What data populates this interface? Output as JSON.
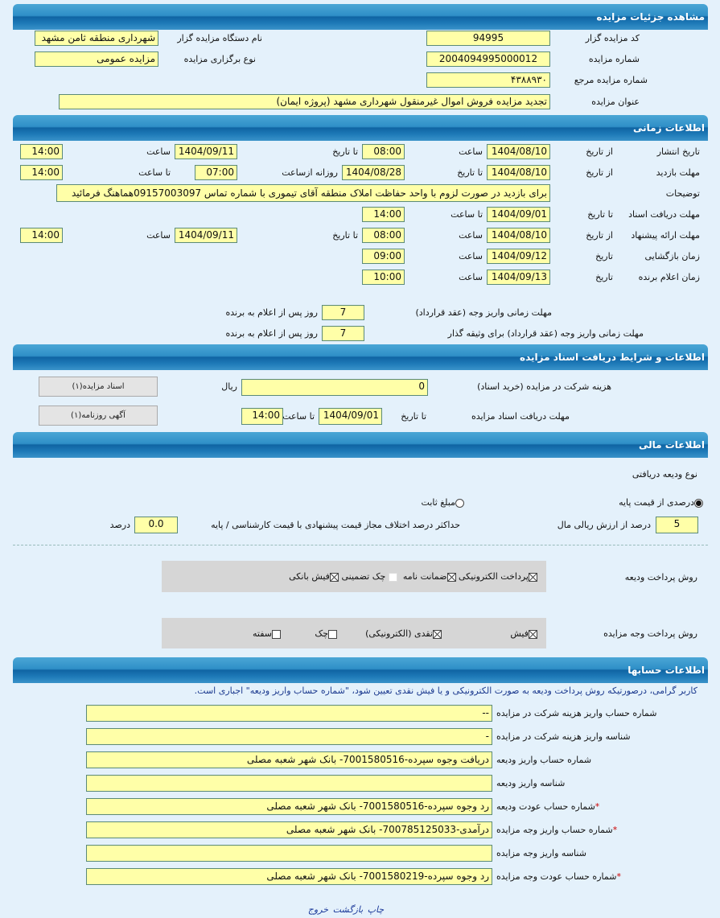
{
  "details": {
    "title": "مشاهده جزئیات مزایده",
    "code_label": "کد مزایده گزار",
    "code": "94995",
    "org_label": "نام دستگاه مزایده گزار",
    "org": "شهرداری منطقه ثامن مشهد",
    "number_label": "شماره مزایده",
    "number": "2004094995000012",
    "type_label": "نوع برگزاری مزایده",
    "type": "مزایده عمومی",
    "ref_label": "شماره مزایده مرجع",
    "ref": "۴۳۸۸۹۳۰",
    "subject_label": "عنوان مزایده",
    "subject": "تجدید مزایده فروش اموال غیرمنقول شهرداری مشهد (پروژه ایمان)"
  },
  "timing": {
    "title": "اطلاعات زمانی",
    "lbl_from_date": "از تاریخ",
    "lbl_to_date": "تا تاریخ",
    "lbl_time": "ساعت",
    "lbl_to_time": "تا ساعت",
    "lbl_date": "تاریخ",
    "lbl_daily_from": "روزانه ازساعت",
    "publish": {
      "label": "تاریخ انتشار",
      "from_date": "1404/08/10",
      "from_time": "08:00",
      "to_date": "1404/09/11",
      "to_time": "14:00"
    },
    "visit": {
      "label": "مهلت بازدید",
      "from_date": "1404/08/10",
      "to_date": "1404/08/28",
      "daily_from": "07:00",
      "to_time": "14:00"
    },
    "notes": {
      "label": "توضیحات",
      "value": "برای بازدید در صورت لزوم با واحد حفاظت املاک منطقه آقای تیموری با شماره تماس 09157003097هماهنگ فرمائید"
    },
    "docs_deadline": {
      "label": "مهلت دریافت اسناد",
      "to_date": "1404/09/01",
      "to_time": "14:00"
    },
    "offer": {
      "label": "مهلت ارائه پیشنهاد",
      "from_date": "1404/08/10",
      "from_time": "08:00",
      "to_date": "1404/09/11",
      "to_time": "14:00"
    },
    "opening": {
      "label": "زمان بازگشایی",
      "date": "1404/09/12",
      "time": "09:00"
    },
    "winner": {
      "label": "زمان اعلام برنده",
      "date": "1404/09/13",
      "time": "10:00"
    },
    "payment1": {
      "label": "مهلت زمانی واریز وجه (عقد قرارداد)",
      "days": "7",
      "suffix": "روز پس از اعلام به برنده"
    },
    "payment2": {
      "label": "مهلت زمانی واریز وجه (عقد قرارداد) برای وثیقه گذار",
      "days": "7",
      "suffix": "روز پس از اعلام به برنده"
    }
  },
  "docs": {
    "title": "اطلاعات و شرایط دریافت اسناد مزایده",
    "fee_label": "هزینه شرکت در مزایده (خرید اسناد)",
    "fee": "0",
    "currency": "ریال",
    "deadline_label": "مهلت دریافت اسناد مزایده",
    "to_date_label": "تا تاریخ",
    "to_date": "1404/09/01",
    "to_time_label": "تا ساعت",
    "to_time": "14:00",
    "btn_docs": "اسناد مزایده(۱)",
    "btn_ad": "آگهی روزنامه(۱)"
  },
  "finance": {
    "title": "اطلاعات مالی",
    "deposit_type_label": "نوع ودیعه دریافتی",
    "radio_percent": "درصدی از قیمت پایه",
    "radio_fixed": "مبلغ ثابت",
    "selected": "percent",
    "percent": "5",
    "percent_label": "درصد از ارزش ریالی مال",
    "max_diff_label": "حداکثر درصد اختلاف مجاز قیمت پیشنهادی با قیمت کارشناسی / پایه",
    "max_diff": "0.0",
    "max_diff_unit": "درصد",
    "deposit_method_label": "روش پرداخت ودیعه",
    "deposit_methods": [
      {
        "label": "پرداخت الکترونیکی",
        "checked": true
      },
      {
        "label": "ضمانت نامه",
        "checked": true
      },
      {
        "label": "چک تضمینی",
        "checked": false
      },
      {
        "label": "فیش بانکی",
        "checked": true
      }
    ],
    "payment_method_label": "روش پرداخت وجه مزایده",
    "payment_methods": [
      {
        "label": "فیش",
        "checked": true
      },
      {
        "label": "نقدی (الکترونیکی)",
        "checked": true
      },
      {
        "label": "چک",
        "checked": false
      },
      {
        "label": "سفته",
        "checked": false
      }
    ]
  },
  "accounts": {
    "title": "اطلاعات حسابها",
    "notice": "کاربر گرامی، درصورتیکه روش پرداخت ودیعه به صورت الکترونیکی و یا فیش نقدی تعیین شود، \"شماره حساب واریز ودیعه\" اجباری است.",
    "rows": [
      {
        "label": "شماره حساب واریز هزینه شرکت در مزایده",
        "value": "--",
        "required": false
      },
      {
        "label": "شناسه واریز هزینه شرکت در مزایده",
        "value": "-",
        "required": false
      },
      {
        "label": "شماره حساب واریز ودیعه",
        "value": "دریافت وجوه سپرده-7001580516- بانک شهر شعبه مصلی",
        "required": false
      },
      {
        "label": "شناسه واریز ودیعه",
        "value": "",
        "required": false
      },
      {
        "label": "شماره حساب عودت ودیعه",
        "value": "رد وجوه سپرده-7001580516- بانک شهر شعبه مصلی",
        "required": true
      },
      {
        "label": "شماره حساب واریز وجه مزایده",
        "value": "درآمدی-700785125033- بانک شهر شعبه مصلی",
        "required": true
      },
      {
        "label": "شناسه واریز وجه مزایده",
        "value": "",
        "required": false
      },
      {
        "label": "شماره حساب عودت وجه مزایده",
        "value": "رد وجوه سپرده-7001580219- بانک شهر شعبه مصلی",
        "required": true
      }
    ]
  },
  "footer": {
    "print": "چاپ",
    "back": "بازگشت",
    "exit": "خروج"
  }
}
